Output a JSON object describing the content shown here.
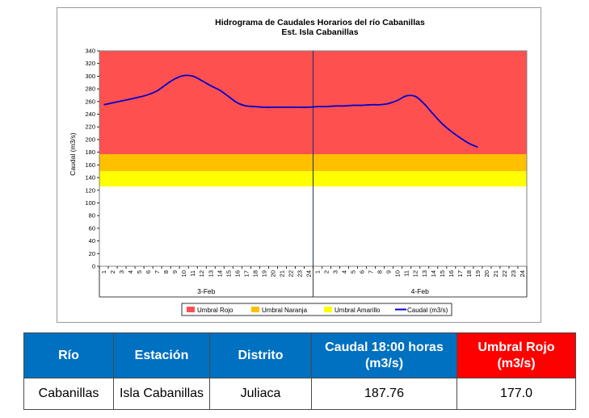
{
  "chart_data": {
    "type": "line",
    "title": "Hidrograma de Caudales Horarios del río Cabanillas",
    "subtitle": "Est. Isla Cabanillas",
    "ylabel": "Caudal  (m3/s)",
    "ylim": [
      0,
      340
    ],
    "yticks": [
      0,
      20,
      40,
      60,
      80,
      100,
      120,
      140,
      160,
      180,
      200,
      220,
      240,
      260,
      280,
      300,
      320,
      340
    ],
    "xticks": [
      "1",
      "2",
      "3",
      "4",
      "5",
      "6",
      "7",
      "8",
      "9",
      "10",
      "11",
      "12",
      "13",
      "14",
      "15",
      "16",
      "17",
      "18",
      "19",
      "20",
      "21",
      "22",
      "23",
      "24",
      "1",
      "2",
      "3",
      "4",
      "5",
      "6",
      "7",
      "8",
      "9",
      "10",
      "11",
      "12",
      "13",
      "14",
      "15",
      "16",
      "17",
      "18",
      "19",
      "20",
      "21",
      "22",
      "23",
      "24"
    ],
    "days": [
      "3-Feb",
      "4-Feb"
    ],
    "thresholds": [
      {
        "name": "Umbral Rojo",
        "value": 177,
        "color": "#ff5050"
      },
      {
        "name": "Umbral Naranja",
        "value": 150,
        "color": "#ffc000"
      },
      {
        "name": "Umbral Amarillo",
        "value": 126,
        "color": "#ffff00"
      }
    ],
    "series": [
      {
        "name": "Caudal (m3/s)",
        "color": "#0000cc",
        "x": [
          1,
          2,
          3,
          4,
          5,
          6,
          7,
          8,
          9,
          10,
          11,
          12,
          13,
          14,
          15,
          16,
          17,
          18,
          19,
          20,
          21,
          22,
          23,
          24,
          25,
          26,
          27,
          28,
          29,
          30,
          31,
          32,
          33,
          34,
          35,
          36,
          37,
          38,
          39,
          40,
          41,
          42,
          43
        ],
        "values": [
          255,
          258,
          261,
          264,
          267,
          271,
          277,
          287,
          296,
          301,
          300,
          293,
          285,
          278,
          268,
          258,
          253,
          252,
          251,
          251,
          251,
          251,
          251,
          251,
          252,
          252,
          253,
          253,
          254,
          254,
          255,
          255,
          257,
          262,
          269,
          268,
          256,
          240,
          225,
          213,
          203,
          194,
          188
        ]
      }
    ],
    "legend_position": "bottom",
    "grid": false
  },
  "table": {
    "headers": [
      "Río",
      "Estación",
      "Distrito",
      "Caudal 18:00 horas (m3/s)",
      "Umbral Rojo (m3/s)"
    ],
    "row": [
      "Cabanillas",
      "Isla Cabanillas",
      "Juliaca",
      "187.76",
      "177.0"
    ]
  },
  "colors": {
    "header_blue": "#0070c0",
    "header_red": "#ff0000"
  }
}
